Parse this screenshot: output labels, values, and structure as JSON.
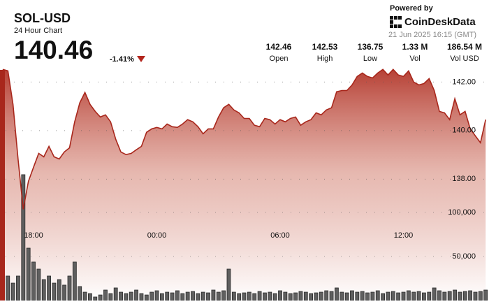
{
  "header": {
    "symbol": "SOL-USD",
    "subtitle": "24 Hour Chart",
    "price": "140.46",
    "change": "-1.41%",
    "powered_by": "Powered by",
    "brand": "CoinDeskData",
    "timestamp": "21 Jun 2025 16:15 (GMT)",
    "stats": [
      {
        "value": "142.46",
        "label": "Open"
      },
      {
        "value": "142.53",
        "label": "High"
      },
      {
        "value": "136.75",
        "label": "Low"
      },
      {
        "value": "1.33 M",
        "label": "Vol"
      },
      {
        "value": "186.54 M",
        "label": "Vol USD"
      }
    ]
  },
  "chart_data": {
    "type": "line",
    "color": "#a8271c",
    "categories": [
      null,
      null,
      null,
      null,
      null,
      null,
      "18:00",
      null,
      null,
      null,
      null,
      null,
      null,
      null,
      null,
      null,
      null,
      null,
      null,
      null,
      null,
      null,
      null,
      null,
      null,
      null,
      null,
      null,
      null,
      null,
      "00:00",
      null,
      null,
      null,
      null,
      null,
      null,
      null,
      null,
      null,
      null,
      null,
      null,
      null,
      null,
      null,
      null,
      null,
      null,
      null,
      null,
      null,
      null,
      null,
      "06:00",
      null,
      null,
      null,
      null,
      null,
      null,
      null,
      null,
      null,
      null,
      null,
      null,
      null,
      null,
      null,
      null,
      null,
      null,
      null,
      null,
      null,
      null,
      null,
      "12:00",
      null,
      null,
      null,
      null,
      null,
      null,
      null,
      null,
      null,
      null,
      null,
      null,
      null,
      null,
      null,
      null
    ],
    "values": [
      142.52,
      142.46,
      141.08,
      138.78,
      136.76,
      137.91,
      138.49,
      139.06,
      138.92,
      139.35,
      138.92,
      138.83,
      139.12,
      139.29,
      140.36,
      141.14,
      141.57,
      141.08,
      140.79,
      140.56,
      140.65,
      140.36,
      139.64,
      139.12,
      139.01,
      139.06,
      139.21,
      139.35,
      139.93,
      140.07,
      140.13,
      140.07,
      140.27,
      140.16,
      140.13,
      140.27,
      140.45,
      140.36,
      140.16,
      139.87,
      140.07,
      140.07,
      140.56,
      140.94,
      141.08,
      140.85,
      140.73,
      140.5,
      140.5,
      140.22,
      140.16,
      140.5,
      140.45,
      140.27,
      140.45,
      140.36,
      140.5,
      140.56,
      140.22,
      140.36,
      140.45,
      140.73,
      140.65,
      140.85,
      140.94,
      141.6,
      141.65,
      141.65,
      141.88,
      142.23,
      142.37,
      142.23,
      142.17,
      142.37,
      142.52,
      142.29,
      142.52,
      142.29,
      142.23,
      142.46,
      142.0,
      141.88,
      141.94,
      142.14,
      141.65,
      140.79,
      140.73,
      140.45,
      141.31,
      140.65,
      140.79,
      140.07,
      139.78,
      139.5,
      140.45
    ],
    "ylim": [
      133.0,
      142.5
    ],
    "yticks": [
      {
        "value": 138,
        "label": "138.00"
      },
      {
        "value": 140,
        "label": "140.00"
      },
      {
        "value": 142,
        "label": "142.00"
      }
    ],
    "grid": true,
    "volume": {
      "type": "bar",
      "color": "#5f5f5f",
      "values": [
        15900,
        27800,
        19800,
        27800,
        142900,
        59500,
        43700,
        35700,
        23800,
        27800,
        19800,
        23800,
        17500,
        27800,
        43700,
        15900,
        9500,
        7900,
        4000,
        6300,
        11900,
        7900,
        14300,
        9500,
        7900,
        9500,
        11900,
        7900,
        6300,
        9500,
        11100,
        7900,
        9500,
        8700,
        11100,
        7900,
        9500,
        10300,
        7900,
        9500,
        8700,
        11900,
        9500,
        11100,
        35700,
        9500,
        7900,
        8700,
        9500,
        7900,
        10300,
        8700,
        9500,
        7900,
        11100,
        9500,
        7900,
        8700,
        10300,
        9500,
        7900,
        8700,
        9500,
        11100,
        10300,
        14300,
        9500,
        8700,
        11100,
        9500,
        10300,
        8700,
        9500,
        11100,
        7900,
        9500,
        10300,
        8700,
        9500,
        11100,
        9500,
        10300,
        8700,
        9500,
        14300,
        11100,
        9500,
        10300,
        11900,
        9500,
        10300,
        11100,
        9500,
        10300,
        11900
      ],
      "ylim": [
        0,
        150000
      ],
      "yticks": [
        {
          "value": 50000,
          "label": "50,000"
        },
        {
          "value": 100000,
          "label": "100,000"
        }
      ]
    }
  }
}
